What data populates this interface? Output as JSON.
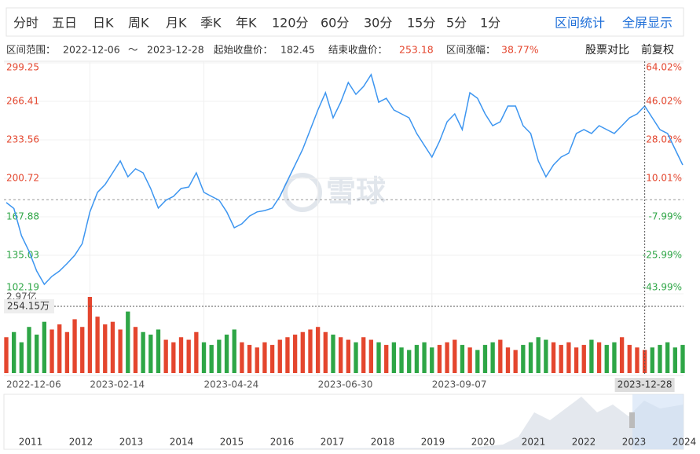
{
  "toolbar": {
    "tabs": [
      "分时",
      "五日",
      "日K",
      "周K",
      "月K",
      "季K",
      "年K",
      "120分",
      "60分",
      "30分",
      "15分",
      "5分",
      "1分"
    ],
    "actions": [
      "区间统计",
      "全屏显示"
    ]
  },
  "range_info": {
    "range_label": "区间范围：",
    "start_date": "2022-12-06",
    "separator": "～",
    "end_date": "2023-12-28",
    "start_close_label": "起始收盘价：",
    "start_close": 182.45,
    "end_close_label": "结束收盘价：",
    "end_close": 253.18,
    "change_label": "区间涨幅：",
    "change": "38.77%"
  },
  "options": [
    "股票对比",
    "前复权"
  ],
  "watermark": "雪球",
  "chart_data": {
    "type": "line",
    "categories": [
      "2022-12-06",
      null,
      null,
      null,
      null,
      null,
      null,
      null,
      null,
      null,
      null,
      "2023-02-14",
      null,
      null,
      null,
      null,
      null,
      null,
      null,
      null,
      null,
      null,
      null,
      null,
      null,
      null,
      "2023-04-24",
      null,
      null,
      null,
      null,
      null,
      null,
      null,
      null,
      null,
      null,
      null,
      null,
      null,
      null,
      "2023-06-30",
      null,
      null,
      null,
      null,
      null,
      null,
      null,
      null,
      null,
      null,
      null,
      null,
      null,
      null,
      "2023-09-07",
      null,
      null,
      null,
      null,
      null,
      null,
      null,
      null,
      null,
      null,
      null,
      null,
      null,
      null,
      null,
      null,
      null,
      null,
      null,
      null,
      null,
      null,
      null,
      null,
      null,
      null,
      null,
      "2023-12-28",
      null,
      null,
      null,
      null,
      null
    ],
    "values": [
      180,
      175,
      151.8,
      138.4,
      121.6,
      110.2,
      117,
      121.6,
      128,
      135,
      145,
      172,
      188.7,
      195.4,
      205.4,
      215.5,
      202,
      208.8,
      205.4,
      192,
      175.3,
      182,
      185.3,
      192,
      193.3,
      205.4,
      188.7,
      185.3,
      182,
      172,
      158.5,
      161.9,
      168.5,
      172,
      173.2,
      175.3,
      185.3,
      198.7,
      212.1,
      225.5,
      242.3,
      259,
      273.8,
      252.3,
      265.7,
      282.5,
      272.4,
      279.1,
      289.2,
      265.7,
      269,
      259,
      255.7,
      252.3,
      239,
      228.9,
      218.8,
      232.2,
      249,
      255.7,
      242.3,
      273.8,
      269,
      255.7,
      245.6,
      249,
      262.4,
      262.4,
      245.6,
      239,
      215.5,
      202,
      212.1,
      218.8,
      222.2,
      239,
      242.3,
      239,
      245.6,
      242.3,
      239,
      245.6,
      252.3,
      255.7,
      262.4,
      252.3,
      242.3,
      239,
      225.5,
      212.1
    ],
    "color": "#3c95f0",
    "ylim": [
      102.19,
      299.25
    ],
    "yticks": [
      102.19,
      135.03,
      167.88,
      200.72,
      233.56,
      266.41,
      299.25
    ],
    "y2lim": [
      -43.99,
      64.02
    ],
    "y2ticks": [
      {
        "value": -43.99,
        "label": "-43.99%"
      },
      {
        "value": -25.99,
        "label": "-25.99%"
      },
      {
        "value": -7.99,
        "label": "-7.99%"
      },
      {
        "value": 10.01,
        "label": "10.01%"
      },
      {
        "value": 28.02,
        "label": "28.02%"
      },
      {
        "value": 46.02,
        "label": "46.02%"
      },
      {
        "value": 64.02,
        "label": "64.02%"
      }
    ],
    "up_color": "#e4462e",
    "down_color": "#2ea646",
    "volumes": [
      14000,
      16000,
      12000,
      18000,
      15000,
      20000,
      17000,
      19000,
      16000,
      21000,
      18000,
      29700,
      22000,
      19000,
      20000,
      17000,
      24000,
      18000,
      16000,
      15000,
      17000,
      13000,
      12000,
      14000,
      13000,
      16000,
      12000,
      11000,
      13000,
      15000,
      17000,
      12000,
      11000,
      10000,
      12000,
      11000,
      13000,
      14000,
      15000,
      16000,
      17000,
      18000,
      16000,
      15000,
      14000,
      13000,
      12000,
      14000,
      13000,
      12000,
      11000,
      12000,
      10000,
      9000,
      11000,
      12000,
      10000,
      11000,
      12000,
      13000,
      11000,
      10000,
      9000,
      11000,
      12000,
      13000,
      10000,
      9000,
      11000,
      12000,
      14000,
      13000,
      12000,
      11000,
      12000,
      10000,
      11000,
      13000,
      12000,
      11000,
      12000,
      14000,
      11000,
      10000,
      9000,
      10000,
      11000,
      12000,
      10000,
      11000
    ],
    "volume_ylim": [
      0,
      29700
    ],
    "volume_ticks": [
      {
        "value": 29700,
        "label": "2.97亿"
      }
    ],
    "crosshair_volume": "254.15万",
    "grid": true
  },
  "navigator": {
    "years": [
      "2011",
      "2012",
      "2013",
      "2014",
      "2015",
      "2016",
      "2017",
      "2018",
      "2019",
      "2020",
      "2021",
      "2022",
      "2023",
      "2024"
    ]
  }
}
